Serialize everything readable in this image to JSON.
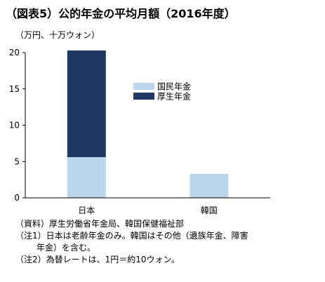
{
  "title": "（図表5）公的年金の平均月額（2016年度）",
  "unit_label": "（万円、十万ウォン）",
  "chart_data": {
    "type": "bar",
    "stacked": true,
    "categories": [
      "日本",
      "韓国"
    ],
    "series": [
      {
        "name": "国民年金",
        "values": [
          5.6,
          3.3
        ],
        "color": "#bcd6ee"
      },
      {
        "name": "厚生年金",
        "values": [
          14.7,
          0
        ],
        "color": "#1f3864"
      }
    ],
    "ylim": [
      0,
      20
    ],
    "yticks": [
      0,
      5,
      10,
      15,
      20
    ],
    "legend_position": "upper-right",
    "grid": false
  },
  "notes": [
    "（資料）厚生労働省年金局、韓国保健福祉部",
    "（注1）日本は老齢年金のみ。韓国はその他（遺族年金、障害",
    "年金）を含む。",
    "（注2）為替レートは、1円＝約10ウォン。"
  ]
}
